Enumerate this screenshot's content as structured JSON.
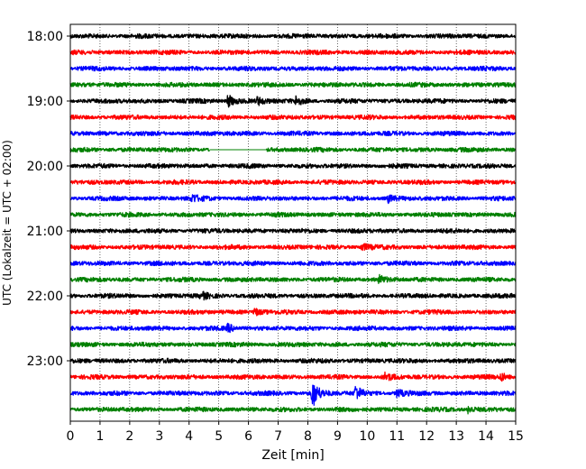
{
  "chart_data": {
    "type": "line",
    "subtype": "helicorder",
    "xlabel": "Zeit  [min]",
    "ylabel": "UTC (Lokalzeit = UTC + 02:00)",
    "xlim": [
      0,
      15
    ],
    "x_ticks": [
      0,
      1,
      2,
      3,
      4,
      5,
      6,
      7,
      8,
      9,
      10,
      11,
      12,
      13,
      14,
      15
    ],
    "y_tick_labels": [
      "18:00",
      "19:00",
      "20:00",
      "21:00",
      "22:00",
      "23:00"
    ],
    "trace_colors": [
      "#000000",
      "#ff0000",
      "#0000ff",
      "#008000"
    ],
    "vertical_grid": "dotted",
    "traces": [
      {
        "start": "18:00",
        "color": "#000000"
      },
      {
        "start": "18:15",
        "color": "#ff0000"
      },
      {
        "start": "18:30",
        "color": "#0000ff"
      },
      {
        "start": "18:45",
        "color": "#008000"
      },
      {
        "start": "19:00",
        "color": "#000000",
        "events": [
          {
            "t": 5.3,
            "amp": 1.8
          },
          {
            "t": 6.3,
            "amp": 1.0
          },
          {
            "t": 7.6,
            "amp": 1.2
          }
        ]
      },
      {
        "start": "19:15",
        "color": "#ff0000"
      },
      {
        "start": "19:30",
        "color": "#0000ff"
      },
      {
        "start": "19:45",
        "color": "#008000",
        "gap": [
          4.7,
          6.6
        ]
      },
      {
        "start": "20:00",
        "color": "#000000"
      },
      {
        "start": "20:15",
        "color": "#ff0000"
      },
      {
        "start": "20:30",
        "color": "#0000ff",
        "events": [
          {
            "t": 4.1,
            "amp": 1.0
          },
          {
            "t": 10.7,
            "amp": 1.0
          }
        ]
      },
      {
        "start": "20:45",
        "color": "#008000"
      },
      {
        "start": "21:00",
        "color": "#000000"
      },
      {
        "start": "21:15",
        "color": "#ff0000",
        "events": [
          {
            "t": 9.8,
            "amp": 1.0
          }
        ]
      },
      {
        "start": "21:30",
        "color": "#0000ff"
      },
      {
        "start": "21:45",
        "color": "#008000",
        "events": [
          {
            "t": 10.4,
            "amp": 1.0
          }
        ]
      },
      {
        "start": "22:00",
        "color": "#000000",
        "events": [
          {
            "t": 4.4,
            "amp": 1.0
          }
        ]
      },
      {
        "start": "22:15",
        "color": "#ff0000",
        "events": [
          {
            "t": 6.2,
            "amp": 1.0
          }
        ]
      },
      {
        "start": "22:30",
        "color": "#0000ff",
        "events": [
          {
            "t": 5.3,
            "amp": 1.0
          }
        ]
      },
      {
        "start": "22:45",
        "color": "#008000"
      },
      {
        "start": "23:00",
        "color": "#000000"
      },
      {
        "start": "23:15",
        "color": "#ff0000",
        "events": [
          {
            "t": 10.6,
            "amp": 1.0
          },
          {
            "t": 14.5,
            "amp": 1.0
          }
        ]
      },
      {
        "start": "23:30",
        "color": "#0000ff",
        "events": [
          {
            "t": 8.15,
            "amp": 4.0
          },
          {
            "t": 9.6,
            "amp": 2.0
          },
          {
            "t": 11.0,
            "amp": 1.0
          }
        ]
      },
      {
        "start": "23:45",
        "color": "#008000",
        "events": [
          {
            "t": 13.4,
            "amp": 1.0
          }
        ]
      }
    ]
  }
}
